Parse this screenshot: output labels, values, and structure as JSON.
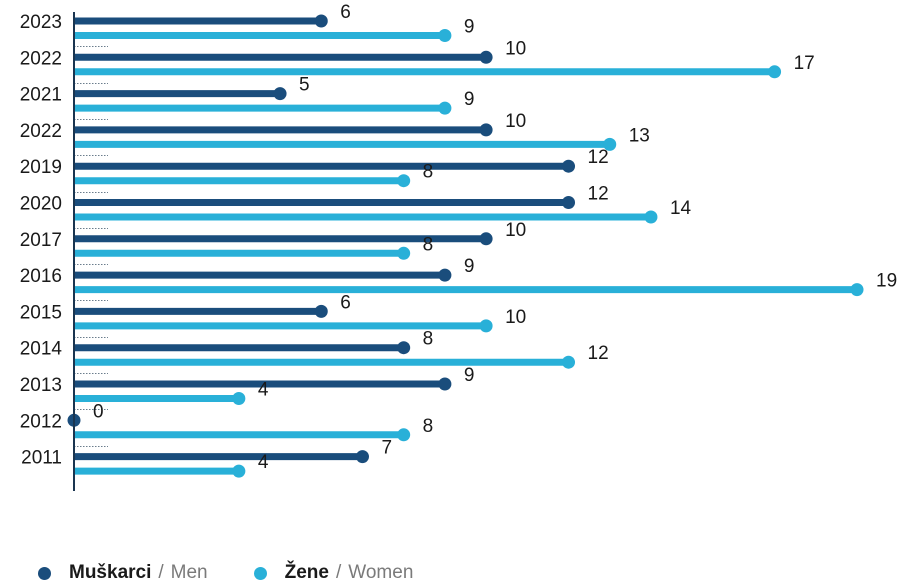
{
  "chart_data": {
    "type": "bar",
    "orientation": "horizontal",
    "style": "lollipop",
    "categories": [
      "2023",
      "2022",
      "2021",
      "2022",
      "2019",
      "2020",
      "2017",
      "2016",
      "2015",
      "2014",
      "2013",
      "2012",
      "2011"
    ],
    "series": [
      {
        "name": "Muškarci / Men",
        "color": "#1a4d7c",
        "values": [
          6,
          10,
          5,
          10,
          12,
          12,
          10,
          9,
          6,
          8,
          9,
          0,
          7
        ]
      },
      {
        "name": "Žene / Women",
        "color": "#29b0d8",
        "values": [
          9,
          17,
          9,
          13,
          8,
          14,
          8,
          19,
          10,
          12,
          4,
          8,
          4
        ]
      }
    ],
    "xlim": [
      0,
      19
    ],
    "legend_position": "bottom-left",
    "grid": false,
    "data_labels": true
  },
  "legend": [
    {
      "strong": "Muškarci",
      "sep": "/",
      "en": "Men",
      "color": "#1a4d7c"
    },
    {
      "strong": "Žene",
      "sep": "/",
      "en": "Women",
      "color": "#29b0d8"
    }
  ]
}
